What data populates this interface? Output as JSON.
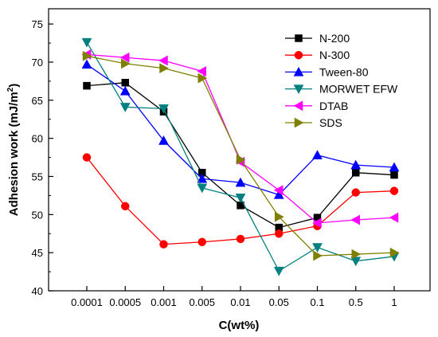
{
  "chart_data": {
    "type": "line",
    "xlabel": "C(wt%)",
    "ylabel": "Adhesion work (mJ/m²)",
    "ylabel_main": "Adhesion work (mJ/m",
    "ylabel_sup": "2",
    "ylabel_end": ")",
    "categories": [
      "0.0001",
      "0.0005",
      "0.001",
      "0.005",
      "0.01",
      "0.05",
      "0.1",
      "0.5",
      "1"
    ],
    "ylim": [
      40,
      77
    ],
    "yticks": [
      "40",
      "45",
      "50",
      "55",
      "60",
      "65",
      "70",
      "75"
    ],
    "ytick_values": [
      40,
      45,
      50,
      55,
      60,
      65,
      70,
      75
    ],
    "grid": false,
    "legend_position": "top-right",
    "series": [
      {
        "name": "N-200",
        "color": "#000000",
        "marker": "square",
        "values": [
          66.9,
          67.3,
          63.5,
          55.5,
          51.2,
          48.3,
          49.6,
          55.5,
          55.2
        ]
      },
      {
        "name": "N-300",
        "color": "#ff0000",
        "marker": "circle",
        "values": [
          57.5,
          51.1,
          46.1,
          46.4,
          46.8,
          47.5,
          48.5,
          52.9,
          53.1
        ]
      },
      {
        "name": "Tween-80",
        "color": "#0000ff",
        "marker": "triangle-up",
        "values": [
          69.7,
          66.2,
          59.7,
          54.7,
          54.2,
          52.6,
          57.8,
          56.5,
          56.2
        ]
      },
      {
        "name": "MORWET EFW",
        "color": "#008080",
        "marker": "triangle-down",
        "values": [
          72.6,
          64.1,
          63.9,
          53.5,
          52.2,
          42.6,
          45.7,
          43.9,
          44.5
        ]
      },
      {
        "name": "DTAB",
        "color": "#ff00ff",
        "marker": "triangle-left",
        "values": [
          71.0,
          70.6,
          70.2,
          68.8,
          56.9,
          53.2,
          48.9,
          49.3,
          49.6
        ]
      },
      {
        "name": "SDS",
        "color": "#808000",
        "marker": "triangle-right",
        "values": [
          70.8,
          69.8,
          69.2,
          67.9,
          57.2,
          49.7,
          44.6,
          44.8,
          45.0
        ]
      }
    ]
  }
}
